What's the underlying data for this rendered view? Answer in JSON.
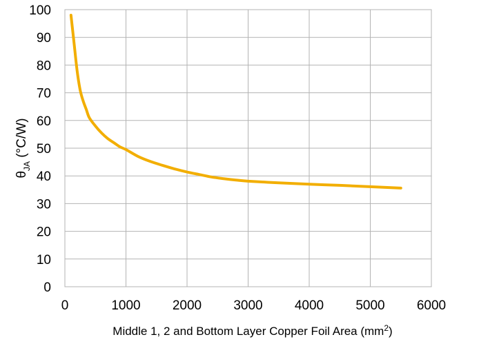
{
  "chart_data": {
    "type": "line",
    "xlabel": "Middle 1, 2 and Bottom Layer Copper Foil Area (mm",
    "xlabel_sup": "2",
    "xlabel_end": ")",
    "ylabel_main": "θ",
    "ylabel_sub": "JA",
    "ylabel_unit": " (°C/W)",
    "xlim": [
      0,
      6000
    ],
    "ylim": [
      0,
      100
    ],
    "xticks": [
      0,
      1000,
      2000,
      3000,
      4000,
      5000,
      6000
    ],
    "yticks": [
      0,
      10,
      20,
      30,
      40,
      50,
      60,
      70,
      80,
      90,
      100
    ],
    "grid": true,
    "line_color": "#F2AE00",
    "series": [
      {
        "x": [
          100,
          150,
          200,
          250,
          300,
          350,
          400,
          500,
          600,
          700,
          800,
          900,
          1000,
          1200,
          1400,
          1600,
          1800,
          2000,
          2200,
          2400,
          2600,
          2800,
          3000,
          3500,
          4000,
          4500,
          5000,
          5500
        ],
        "y": [
          98,
          88,
          78,
          71,
          67,
          64,
          61,
          58,
          55.5,
          53.5,
          52,
          50.5,
          49.5,
          47,
          45.2,
          43.8,
          42.5,
          41.4,
          40.5,
          39.6,
          39,
          38.5,
          38.1,
          37.5,
          37,
          36.6,
          36.1,
          35.6
        ]
      }
    ]
  }
}
